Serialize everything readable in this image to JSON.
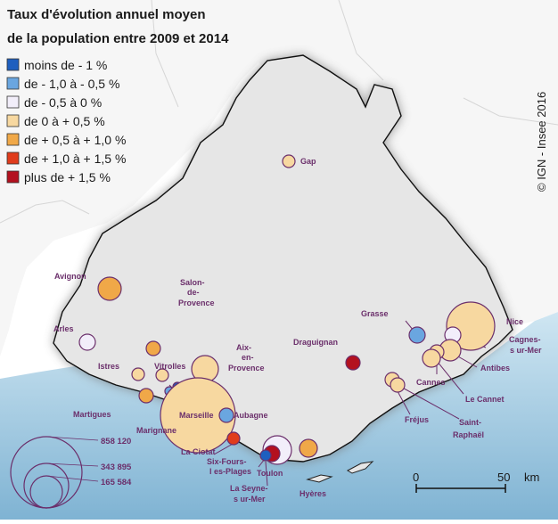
{
  "title": {
    "line1": "Taux d'évolution annuel moyen",
    "line2": "de la population entre 2009 et 2014"
  },
  "legend": [
    {
      "label": "moins de - 1 %",
      "color": "#1f5fbf"
    },
    {
      "label": " de - 1,0 à - 0,5 %",
      "color": "#6aa6e0"
    },
    {
      "label": " de - 0,5 à 0 %",
      "color": "#f2eefa"
    },
    {
      "label": "de 0 à + 0,5 %",
      "color": "#f7d8a0"
    },
    {
      "label": " de + 0,5 à + 1,0 %",
      "color": "#f0a848"
    },
    {
      "label": "de + 1,0 à + 1,5 %",
      "color": "#e03c1c"
    },
    {
      "label": "plus de + 1,5 %",
      "color": "#b3111f"
    }
  ],
  "size_legend": {
    "values": [
      "858 120",
      "343 895",
      "165 584"
    ]
  },
  "source": "© IGN - Insee 2016",
  "scale": {
    "zero": "0",
    "fifty": "50",
    "unit": "km"
  },
  "cities": {
    "gap": "Gap",
    "avignon": "Avignon",
    "salon1": "Salon-",
    "salon2": "de-",
    "salon3": "Provence",
    "arles": "Arles",
    "aix1": "Aix-",
    "aix2": "en-",
    "aix3": "Provence",
    "istres": "Istres",
    "vitrolles": "Vitrolles",
    "martigues": "Martigues",
    "marignane": "Marignane",
    "marseille": "Marseille",
    "aubagne": "Aubagne",
    "laciotat": "La Ciotat",
    "sixfours1": "Six-Fours-",
    "sixfours2": "l es-Plages",
    "toulon": "Toulon",
    "laseyne1": "La Seyne-",
    "laseyne2": "s ur-Mer",
    "hyeres": "Hyères",
    "draguignan": "Draguignan",
    "grasse": "Grasse",
    "nice": "Nice",
    "cagnes1": "Cagnes-",
    "cagnes2": "s ur-Mer",
    "antibes": "Antibes",
    "cannes": "Cannes",
    "lecannet": "Le Cannet",
    "frejus": "Fréjus",
    "saintraphael1": "Saint-",
    "saintraphael2": "Raphaël"
  }
}
